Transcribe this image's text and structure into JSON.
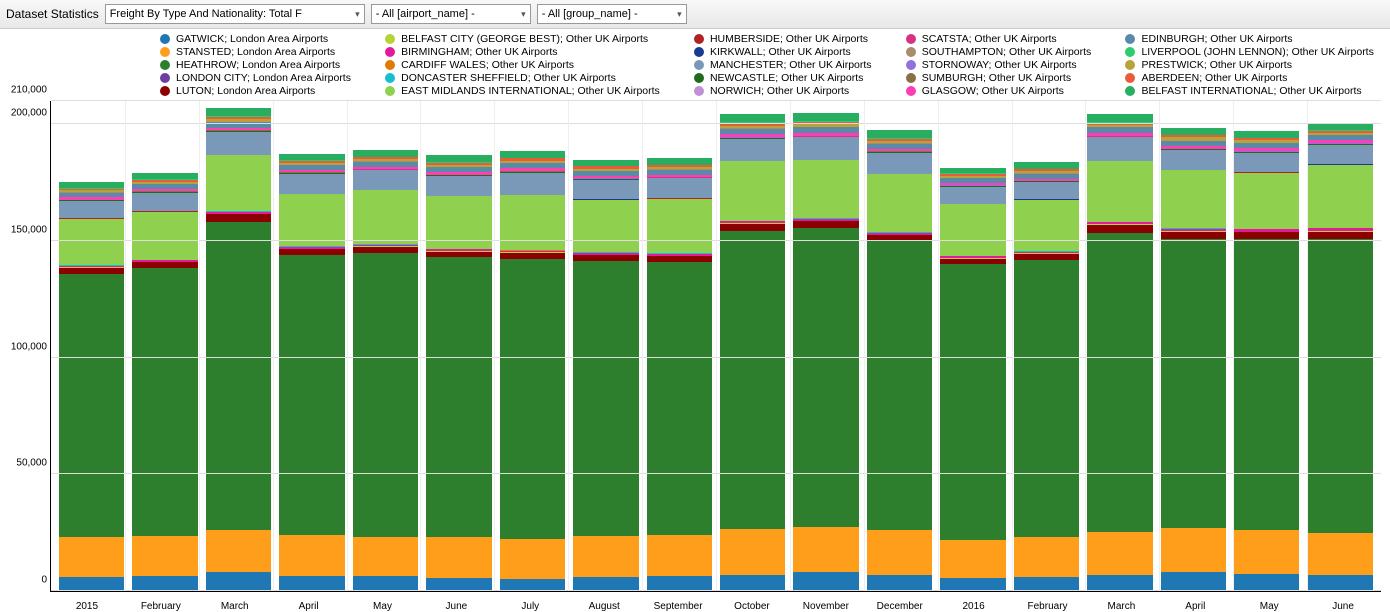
{
  "toolbar": {
    "title": "Dataset Statistics",
    "dd1": "Freight By Type And Nationality: Total F",
    "dd2": "- All [airport_name] -",
    "dd3": "- All [group_name] -"
  },
  "chart": {
    "type": "stacked-bar",
    "ylim": [
      0,
      210000
    ],
    "yticks": [
      0,
      50000,
      100000,
      150000,
      200000,
      210000
    ],
    "ylabels": [
      "0",
      "50,000",
      "100,000",
      "150,000",
      "200,000",
      "210,000"
    ],
    "background_color": "#ffffff",
    "grid_color": "#e0e0e0",
    "axis_color": "#000000",
    "label_fontsize": 10,
    "series": [
      {
        "key": "gatwick",
        "label": "GATWICK; London Area Airports",
        "color": "#1f77b4"
      },
      {
        "key": "stansted",
        "label": "STANSTED; London Area Airports",
        "color": "#ff9e1b"
      },
      {
        "key": "heathrow",
        "label": "HEATHROW; London Area Airports",
        "color": "#2d7f2d"
      },
      {
        "key": "london_city",
        "label": "LONDON CITY; London Area Airports",
        "color": "#6b3fa0"
      },
      {
        "key": "luton",
        "label": "LUTON; London Area Airports",
        "color": "#8b0000"
      },
      {
        "key": "belfast_city",
        "label": "BELFAST CITY (GEORGE BEST); Other UK Airports",
        "color": "#b5d334"
      },
      {
        "key": "birmingham",
        "label": "BIRMINGHAM; Other UK Airports",
        "color": "#e41a9c"
      },
      {
        "key": "cardiff",
        "label": "CARDIFF WALES; Other UK Airports",
        "color": "#e07b00"
      },
      {
        "key": "doncaster",
        "label": "DONCASTER SHEFFIELD; Other UK Airports",
        "color": "#17becf"
      },
      {
        "key": "east_midlands",
        "label": "EAST MIDLANDS INTERNATIONAL; Other UK Airports",
        "color": "#8fd14f"
      },
      {
        "key": "humberside",
        "label": "HUMBERSIDE; Other UK Airports",
        "color": "#b22222"
      },
      {
        "key": "kirkwall",
        "label": "KIRKWALL; Other UK Airports",
        "color": "#1a3a8f"
      },
      {
        "key": "manchester",
        "label": "MANCHESTER; Other UK Airports",
        "color": "#7a99b8"
      },
      {
        "key": "newcastle",
        "label": "NEWCASTLE; Other UK Airports",
        "color": "#1e6b1e"
      },
      {
        "key": "norwich",
        "label": "NORWICH; Other UK Airports",
        "color": "#c18fd6"
      },
      {
        "key": "scatsta",
        "label": "SCATSTA; Other UK Airports",
        "color": "#d63384"
      },
      {
        "key": "stornoway",
        "label": "STORNOWAY; Other UK Airports",
        "color": "#9370db"
      },
      {
        "key": "sumburgh",
        "label": "SUMBURGH; Other UK Airports",
        "color": "#8b6f47"
      },
      {
        "key": "glasgow",
        "label": "GLASGOW; Other UK Airports",
        "color": "#ff3eb5"
      },
      {
        "key": "edinburgh",
        "label": "EDINBURGH; Other UK Airports",
        "color": "#5a8aa8"
      },
      {
        "key": "southampton",
        "label": "SOUTHAMPTON; Other UK Airports",
        "color": "#a88c6b"
      },
      {
        "key": "prestwick",
        "label": "PRESTWICK; Other UK Airports",
        "color": "#b8a23a"
      },
      {
        "key": "aberdeen",
        "label": "ABERDEEN; Other UK Airports",
        "color": "#e85c3a"
      },
      {
        "key": "liverpool",
        "label": "LIVERPOOL (JOHN LENNON); Other UK Airports",
        "color": "#2ecc71"
      },
      {
        "key": "belfast_intl",
        "label": "BELFAST INTERNATIONAL; Other UK Airports",
        "color": "#27ae60"
      }
    ],
    "legend_layout": [
      [
        "gatwick",
        "belfast_city",
        "humberside",
        "scatsta",
        "edinburgh"
      ],
      [
        "stansted",
        "birmingham",
        "kirkwall",
        "southampton",
        "liverpool"
      ],
      [
        "heathrow",
        "cardiff",
        "manchester",
        "stornoway",
        "prestwick"
      ],
      [
        "london_city",
        "doncaster",
        "newcastle",
        "sumburgh",
        "aberdeen"
      ],
      [
        "luton",
        "east_midlands",
        "norwich",
        "glasgow",
        "belfast_intl"
      ]
    ],
    "categories": [
      "2015",
      "February",
      "March",
      "April",
      "May",
      "June",
      "July",
      "August",
      "September",
      "October",
      "November",
      "December",
      "2016",
      "February",
      "March",
      "April",
      "May",
      "June"
    ],
    "stack_order": [
      "gatwick",
      "stansted",
      "heathrow",
      "london_city",
      "luton",
      "belfast_city",
      "birmingham",
      "cardiff",
      "doncaster",
      "east_midlands",
      "humberside",
      "kirkwall",
      "manchester",
      "newcastle",
      "norwich",
      "scatsta",
      "stornoway",
      "sumburgh",
      "glasgow",
      "edinburgh",
      "southampton",
      "prestwick",
      "aberdeen",
      "liverpool",
      "belfast_intl"
    ],
    "data": {
      "gatwick": [
        6000,
        6500,
        8000,
        6500,
        6500,
        5500,
        5000,
        6000,
        6500,
        7000,
        8000,
        7000,
        5500,
        6000,
        7000,
        8000,
        7500,
        7000
      ],
      "stansted": [
        17000,
        17000,
        18000,
        17500,
        16500,
        17500,
        17500,
        17500,
        17500,
        19500,
        19500,
        19000,
        16500,
        17000,
        18500,
        19000,
        18500,
        18000
      ],
      "heathrow": [
        113000,
        115000,
        132000,
        120000,
        122000,
        120000,
        120000,
        118000,
        117000,
        128000,
        128000,
        124000,
        118000,
        119000,
        128000,
        124000,
        125000,
        126000
      ],
      "london_city": [
        0,
        0,
        0,
        0,
        0,
        0,
        0,
        0,
        0,
        0,
        0,
        0,
        0,
        0,
        0,
        0,
        0,
        0
      ],
      "luton": [
        2500,
        2500,
        3500,
        2500,
        2500,
        2500,
        2500,
        2500,
        2500,
        3000,
        3000,
        2500,
        2500,
        2500,
        3500,
        3000,
        2800,
        3000
      ],
      "belfast_city": [
        200,
        200,
        200,
        200,
        200,
        200,
        200,
        200,
        200,
        200,
        200,
        200,
        200,
        200,
        200,
        200,
        200,
        200
      ],
      "birmingham": [
        600,
        600,
        700,
        700,
        700,
        700,
        700,
        700,
        700,
        800,
        800,
        700,
        700,
        700,
        800,
        900,
        1000,
        1200
      ],
      "cardiff": [
        100,
        100,
        100,
        100,
        100,
        100,
        100,
        100,
        100,
        100,
        100,
        100,
        100,
        100,
        100,
        100,
        100,
        100
      ],
      "doncaster": [
        200,
        200,
        200,
        200,
        200,
        200,
        200,
        200,
        200,
        200,
        200,
        200,
        200,
        200,
        200,
        200,
        200,
        200
      ],
      "east_midlands": [
        20000,
        20500,
        24000,
        22500,
        23000,
        22500,
        23500,
        22500,
        23500,
        25500,
        25000,
        25000,
        22000,
        22000,
        26000,
        25000,
        24000,
        27000
      ],
      "humberside": [
        100,
        100,
        100,
        100,
        100,
        100,
        100,
        100,
        100,
        100,
        100,
        100,
        100,
        100,
        100,
        100,
        100,
        100
      ],
      "kirkwall": [
        50,
        50,
        50,
        50,
        50,
        50,
        50,
        50,
        50,
        50,
        50,
        50,
        50,
        50,
        50,
        50,
        50,
        50
      ],
      "manchester": [
        7500,
        8000,
        10000,
        8500,
        8500,
        8500,
        9500,
        8500,
        8500,
        9500,
        9500,
        9000,
        7500,
        7500,
        10000,
        8500,
        8500,
        8500
      ],
      "newcastle": [
        300,
        300,
        300,
        300,
        300,
        300,
        300,
        300,
        300,
        300,
        300,
        300,
        300,
        300,
        300,
        300,
        300,
        300
      ],
      "norwich": [
        50,
        50,
        50,
        50,
        50,
        50,
        50,
        50,
        50,
        50,
        50,
        50,
        50,
        50,
        50,
        50,
        50,
        50
      ],
      "scatsta": [
        100,
        100,
        100,
        100,
        100,
        100,
        100,
        100,
        100,
        100,
        100,
        100,
        100,
        100,
        100,
        100,
        100,
        100
      ],
      "stornoway": [
        50,
        50,
        50,
        50,
        50,
        50,
        50,
        50,
        50,
        50,
        50,
        50,
        50,
        50,
        50,
        50,
        50,
        50
      ],
      "sumburgh": [
        100,
        100,
        100,
        100,
        100,
        100,
        100,
        100,
        100,
        100,
        100,
        100,
        100,
        100,
        100,
        100,
        100,
        100
      ],
      "glasgow": [
        1000,
        1000,
        1200,
        1000,
        1000,
        1000,
        1200,
        1000,
        1000,
        1200,
        1200,
        1200,
        800,
        800,
        1200,
        1200,
        1200,
        1200
      ],
      "edinburgh": [
        2000,
        2200,
        2500,
        2200,
        2200,
        2200,
        2200,
        2200,
        2200,
        2500,
        2500,
        2200,
        2200,
        2200,
        2500,
        2200,
        2200,
        2200
      ],
      "southampton": [
        100,
        100,
        100,
        100,
        100,
        100,
        100,
        100,
        100,
        100,
        100,
        100,
        100,
        100,
        100,
        100,
        100,
        100
      ],
      "prestwick": [
        800,
        900,
        1000,
        900,
        900,
        900,
        1000,
        900,
        900,
        1200,
        1200,
        1000,
        900,
        900,
        1000,
        1300,
        1200,
        1000
      ],
      "aberdeen": [
        800,
        900,
        1000,
        900,
        900,
        900,
        1000,
        900,
        900,
        1200,
        1200,
        1000,
        900,
        900,
        1000,
        900,
        900,
        900
      ],
      "liverpool": [
        200,
        200,
        200,
        200,
        200,
        200,
        200,
        200,
        200,
        200,
        200,
        200,
        200,
        200,
        200,
        200,
        200,
        200
      ],
      "belfast_intl": [
        2500,
        2800,
        3500,
        2500,
        2800,
        3000,
        3200,
        2500,
        3000,
        3500,
        3500,
        3500,
        2500,
        2800,
        3500,
        3000,
        2800,
        2500
      ]
    }
  }
}
